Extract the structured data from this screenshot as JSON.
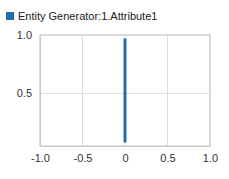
{
  "chart_data": {
    "type": "line",
    "series": [
      {
        "name": "Entity Generator:1.Attribute1",
        "color": "#1f6fb0",
        "x": [
          0,
          0
        ],
        "values": [
          0.08,
          0.97
        ]
      }
    ],
    "xlim": [
      -1,
      1
    ],
    "xticks": [
      {
        "value": -1,
        "label": "-1.0"
      },
      -0.5,
      0,
      0.5,
      {
        "value": 1,
        "label": "1.0"
      }
    ],
    "ylim": [
      0.05,
      1
    ],
    "yticks": [
      0.5,
      {
        "value": 1,
        "label": "1.0"
      }
    ],
    "grid": true,
    "legend": "top"
  }
}
